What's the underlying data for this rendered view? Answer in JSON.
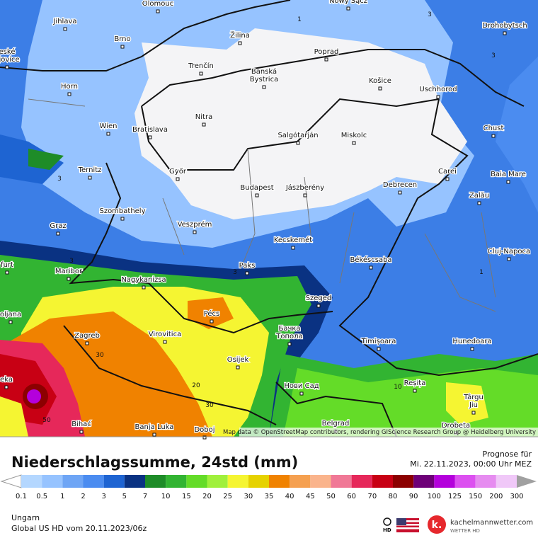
{
  "map": {
    "cities": [
      [
        "Olomouc"
      ],
      [
        "Nowy Sącz"
      ],
      [
        "Jihlava"
      ],
      [
        "Brno"
      ],
      [
        "Žilina"
      ],
      [
        "Poprad"
      ],
      [
        "Drohobytsch"
      ],
      [
        "eské",
        "ějovice"
      ],
      [
        "Trenčín"
      ],
      [
        "Banská",
        "Bystrica"
      ],
      [
        "Košice"
      ],
      [
        "Horn"
      ],
      [
        "Uschhorod"
      ],
      [
        "Nitra"
      ],
      [
        "Wien"
      ],
      [
        "Bratislava"
      ],
      [
        "Chust"
      ],
      [
        "Salgótarján"
      ],
      [
        "Miskolc"
      ],
      [
        "Ternitz"
      ],
      [
        "Győr"
      ],
      [
        "Carei"
      ],
      [
        "Baia Mare"
      ],
      [
        "Budapest"
      ],
      [
        "Jászberény"
      ],
      [
        "Debrecen"
      ],
      [
        "Zalău"
      ],
      [
        "Szombathely"
      ],
      [
        "Graz"
      ],
      [
        "Veszprém"
      ],
      [
        "Cluj-Napoca"
      ],
      [
        "Kecskemét"
      ],
      [
        "furt"
      ],
      [
        "Békéscsaba"
      ],
      [
        "Paks"
      ],
      [
        "Maribor"
      ],
      [
        "Nagykanizsa"
      ],
      [
        "Pécs"
      ],
      [
        "Szeged"
      ],
      [
        "oljana"
      ],
      [
        "Zagreb"
      ],
      [
        "Virovitica"
      ],
      [
        "Бачка",
        "Топола"
      ],
      [
        "Timișoara"
      ],
      [
        "Hunedoara"
      ],
      [
        "Osijek"
      ],
      [
        "Reșița"
      ],
      [
        "Нови Сад"
      ],
      [
        "eka"
      ],
      [
        "Târgu",
        "Jiu"
      ],
      [
        "Bihać"
      ],
      [
        "Banja Luka"
      ],
      [
        "Doboj"
      ],
      [
        "Belgrad"
      ],
      [
        "Drobeta"
      ]
    ],
    "contour_labels": [
      1,
      3,
      3,
      3,
      3,
      3,
      1,
      30,
      20,
      30,
      50,
      10
    ],
    "attribution": "Map data © OpenStreetMap contributors, rendering GIScience Research Group @ Heidelberg University"
  },
  "header": {
    "title": "Niederschlagssumme, 24std (mm)",
    "forecast_label": "Prognose für",
    "forecast_time": "Mi. 22.11.2023, 00:00 Uhr MEZ"
  },
  "legend": {
    "labels": [
      "0.1",
      "0.5",
      "1",
      "2",
      "3",
      "5",
      "7",
      "10",
      "15",
      "20",
      "25",
      "30",
      "35",
      "40",
      "45",
      "50",
      "60",
      "70",
      "80",
      "90",
      "100",
      "125",
      "150",
      "200",
      "300"
    ],
    "colors": [
      "#ffffff",
      "#b4d7ff",
      "#96c3ff",
      "#6ea5f5",
      "#4b8cf0",
      "#1e64d2",
      "#0a3282",
      "#1e8c28",
      "#32b432",
      "#64dc28",
      "#a0f03c",
      "#f5f532",
      "#e6d200",
      "#f08200",
      "#f5a050",
      "#fab48c",
      "#f07896",
      "#e6285a",
      "#c80014",
      "#8c0000",
      "#6e0078",
      "#b400dc",
      "#dc50f0",
      "#e68cf0",
      "#f0c8f8",
      "#d2d2d2",
      "#a0a0a0"
    ]
  },
  "footer": {
    "region": "Ungarn",
    "model": "Global US HD vom  20.11.2023/06z",
    "hd": "HD",
    "logo": "k.",
    "site": "kachelmannwetter.com",
    "brand": "WETTER HD"
  }
}
